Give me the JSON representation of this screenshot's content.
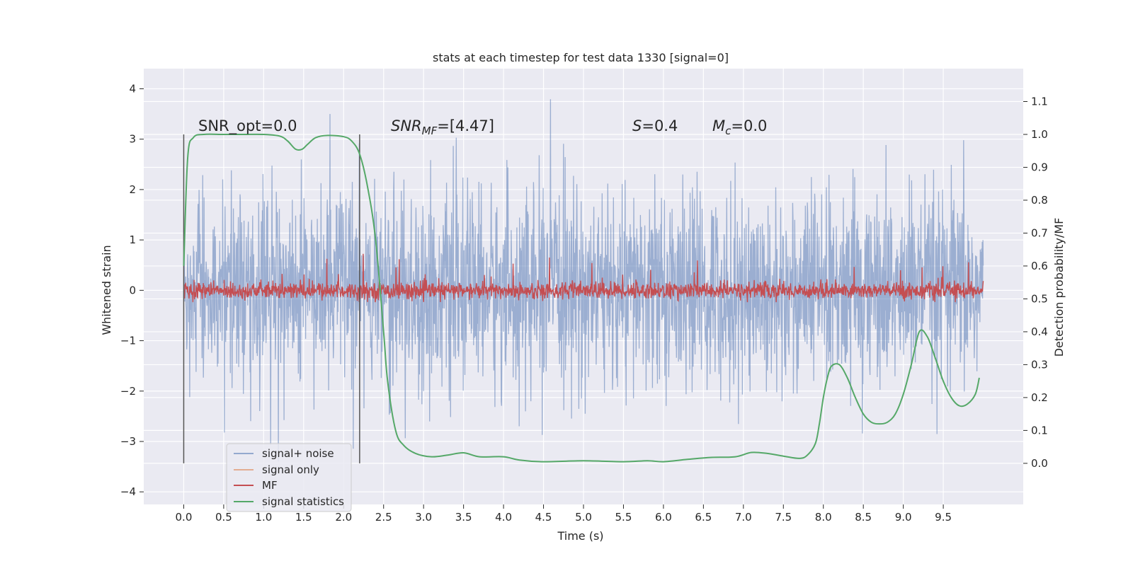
{
  "chart_data": {
    "type": "line",
    "title": "stats at each timestep for test data 1330 [signal=0]",
    "xlabel": "Time (s)",
    "ylabel": "Whitened strain",
    "y2label": "Detection probability/MF",
    "xlim": [
      -0.5,
      10.5
    ],
    "ylim": [
      -4.25,
      4.4
    ],
    "y2lim": [
      -0.125,
      1.2
    ],
    "x_ticks": [
      0.0,
      0.5,
      1.0,
      1.5,
      2.0,
      2.5,
      3.0,
      3.5,
      4.0,
      4.5,
      5.0,
      5.5,
      6.0,
      6.5,
      7.0,
      7.5,
      8.0,
      8.5,
      9.0,
      9.5
    ],
    "x_tick_labels": [
      "0.0",
      "0.5",
      "1.0",
      "1.5",
      "2.0",
      "2.5",
      "3.0",
      "3.5",
      "4.0",
      "4.5",
      "5.0",
      "5.5",
      "6.0",
      "6.5",
      "7.0",
      "7.5",
      "8.0",
      "8.5",
      "9.0",
      "9.5"
    ],
    "y_ticks": [
      4,
      3,
      2,
      1,
      0,
      -1,
      -2,
      -3,
      -4
    ],
    "y_tick_labels": [
      "4",
      "3",
      "2",
      "1",
      "0",
      "−1",
      "−2",
      "−3",
      "−4"
    ],
    "y2_ticks": [
      1.1,
      1.0,
      0.9,
      0.8,
      0.7,
      0.6,
      0.5,
      0.4,
      0.3,
      0.2,
      0.1,
      0.0
    ],
    "y2_tick_labels": [
      "1.1",
      "1.0",
      "0.9",
      "0.8",
      "0.7",
      "0.6",
      "0.5",
      "0.4",
      "0.3",
      "0.2",
      "0.1",
      "0.0"
    ],
    "grid": true,
    "legend_position": "lower-left",
    "series": [
      {
        "name": "signal+ noise",
        "color": "#4c72b0",
        "axis": "left",
        "x_range": [
          0.0,
          10.0
        ],
        "y_typical_range": [
          -1.8,
          1.5
        ],
        "y_extreme_range": [
          -3.9,
          4.05
        ]
      },
      {
        "name": "signal only",
        "color": "#dd8452",
        "axis": "left",
        "values": "flat at 0 (hidden)"
      },
      {
        "name": "MF",
        "color": "#c44e52",
        "axis": "right",
        "x_range": [
          0.0,
          10.0
        ],
        "y_typical_range": [
          0.5,
          0.55
        ],
        "y_extreme_range": [
          0.49,
          0.66
        ]
      },
      {
        "name": "signal statistics",
        "color": "#55a868",
        "axis": "right",
        "points": [
          [
            0.0,
            0.6
          ],
          [
            0.05,
            0.93
          ],
          [
            0.12,
            0.99
          ],
          [
            0.25,
            1.0
          ],
          [
            0.5,
            1.0
          ],
          [
            0.75,
            1.0
          ],
          [
            1.0,
            1.0
          ],
          [
            1.2,
            0.995
          ],
          [
            1.3,
            0.98
          ],
          [
            1.4,
            0.955
          ],
          [
            1.48,
            0.955
          ],
          [
            1.55,
            0.97
          ],
          [
            1.65,
            0.99
          ],
          [
            1.8,
            0.997
          ],
          [
            2.0,
            0.993
          ],
          [
            2.1,
            0.98
          ],
          [
            2.2,
            0.94
          ],
          [
            2.3,
            0.84
          ],
          [
            2.4,
            0.68
          ],
          [
            2.5,
            0.4
          ],
          [
            2.55,
            0.25
          ],
          [
            2.65,
            0.1
          ],
          [
            2.75,
            0.055
          ],
          [
            2.9,
            0.03
          ],
          [
            3.1,
            0.02
          ],
          [
            3.3,
            0.025
          ],
          [
            3.5,
            0.032
          ],
          [
            3.7,
            0.02
          ],
          [
            4.0,
            0.02
          ],
          [
            4.2,
            0.01
          ],
          [
            4.5,
            0.005
          ],
          [
            5.0,
            0.008
          ],
          [
            5.5,
            0.005
          ],
          [
            5.8,
            0.008
          ],
          [
            6.0,
            0.005
          ],
          [
            6.3,
            0.012
          ],
          [
            6.6,
            0.018
          ],
          [
            6.9,
            0.02
          ],
          [
            7.1,
            0.033
          ],
          [
            7.3,
            0.03
          ],
          [
            7.5,
            0.022
          ],
          [
            7.7,
            0.015
          ],
          [
            7.8,
            0.025
          ],
          [
            7.9,
            0.06
          ],
          [
            7.95,
            0.12
          ],
          [
            8.0,
            0.2
          ],
          [
            8.05,
            0.26
          ],
          [
            8.1,
            0.295
          ],
          [
            8.2,
            0.3
          ],
          [
            8.3,
            0.26
          ],
          [
            8.4,
            0.2
          ],
          [
            8.5,
            0.15
          ],
          [
            8.6,
            0.125
          ],
          [
            8.7,
            0.12
          ],
          [
            8.8,
            0.125
          ],
          [
            8.9,
            0.15
          ],
          [
            9.0,
            0.21
          ],
          [
            9.1,
            0.3
          ],
          [
            9.2,
            0.4
          ],
          [
            9.3,
            0.385
          ],
          [
            9.4,
            0.32
          ],
          [
            9.5,
            0.25
          ],
          [
            9.6,
            0.2
          ],
          [
            9.7,
            0.175
          ],
          [
            9.8,
            0.18
          ],
          [
            9.9,
            0.21
          ],
          [
            9.95,
            0.26
          ]
        ]
      }
    ],
    "vertical_lines": [
      0.0,
      2.2
    ],
    "annotations": {
      "snr_opt": "SNR_opt=0.0",
      "snr_mf_label": "SNR",
      "snr_mf_sub": "MF",
      "snr_mf_value": "=[4.47]",
      "s_label": "S",
      "s_value": "=0.4",
      "mc_label": "M",
      "mc_sub": "c",
      "mc_value": "=0.0"
    },
    "legend": [
      "signal+ noise",
      "signal only",
      "MF",
      "signal statistics"
    ]
  }
}
